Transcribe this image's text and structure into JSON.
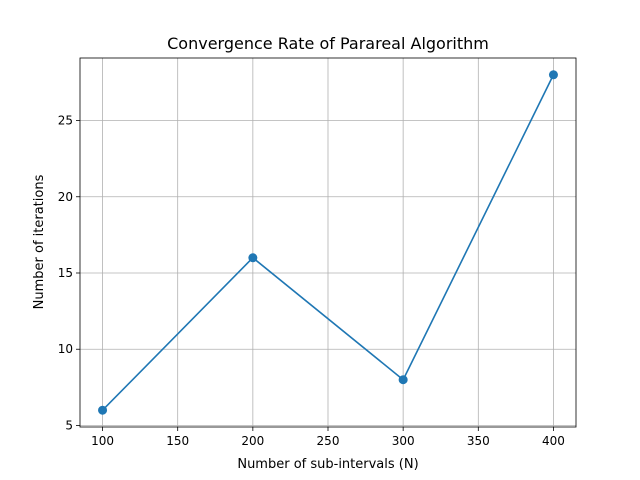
{
  "chart_data": {
    "type": "line",
    "title": "Convergence Rate of Parareal Algorithm",
    "xlabel": "Number of sub-intervals (N)",
    "ylabel": "Number of iterations",
    "x": [
      100,
      200,
      300,
      400
    ],
    "series": [
      {
        "values": [
          6,
          16,
          8,
          28
        ],
        "color": "#1f77b4",
        "marker": "circle"
      }
    ],
    "xlim": [
      85,
      415
    ],
    "ylim": [
      4.9,
      29.1
    ],
    "xticks": [
      100,
      150,
      200,
      250,
      300,
      350,
      400
    ],
    "yticks": [
      5,
      10,
      15,
      20,
      25
    ],
    "grid": true
  }
}
